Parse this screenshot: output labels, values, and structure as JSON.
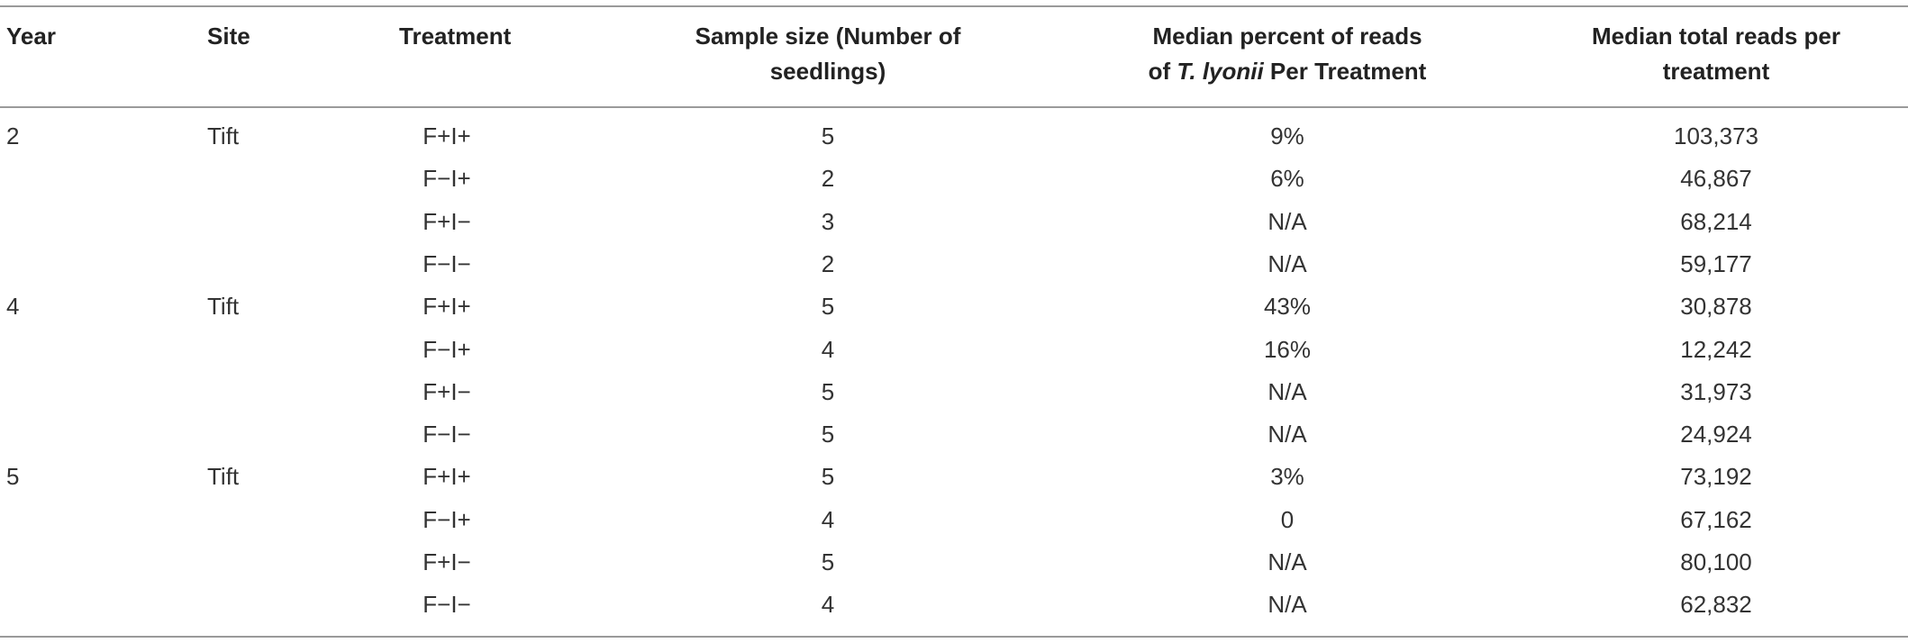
{
  "table": {
    "header": [
      [
        "Year"
      ],
      [
        "Site"
      ],
      [
        "Treatment"
      ],
      [
        "Sample size (Number of",
        "seedlings)"
      ],
      [
        "Median percent of reads",
        [
          "of ",
          "T. lyonii",
          " Per Treatment"
        ]
      ],
      [
        "Median total reads per",
        "treatment"
      ]
    ],
    "groups": [
      {
        "year": "2",
        "site": "Tift",
        "rows": [
          [
            "F+I+",
            "5",
            "9%",
            "103,373"
          ],
          [
            "F−I+",
            "2",
            "6%",
            "46,867"
          ],
          [
            "F+I−",
            "3",
            "N/A",
            "68,214"
          ],
          [
            "F−I−",
            "2",
            "N/A",
            "59,177"
          ]
        ]
      },
      {
        "year": "4",
        "site": "Tift",
        "rows": [
          [
            "F+I+",
            "5",
            "43%",
            "30,878"
          ],
          [
            "F−I+",
            "4",
            "16%",
            "12,242"
          ],
          [
            "F+I−",
            "5",
            "N/A",
            "31,973"
          ],
          [
            "F−I−",
            "5",
            "N/A",
            "24,924"
          ]
        ]
      },
      {
        "year": "5",
        "site": "Tift",
        "rows": [
          [
            "F+I+",
            "5",
            "3%",
            "73,192"
          ],
          [
            "F−I+",
            "4",
            "0",
            "67,162"
          ],
          [
            "F+I−",
            "5",
            "N/A",
            "80,100"
          ],
          [
            "F−I−",
            "4",
            "N/A",
            "62,832"
          ]
        ]
      }
    ]
  }
}
